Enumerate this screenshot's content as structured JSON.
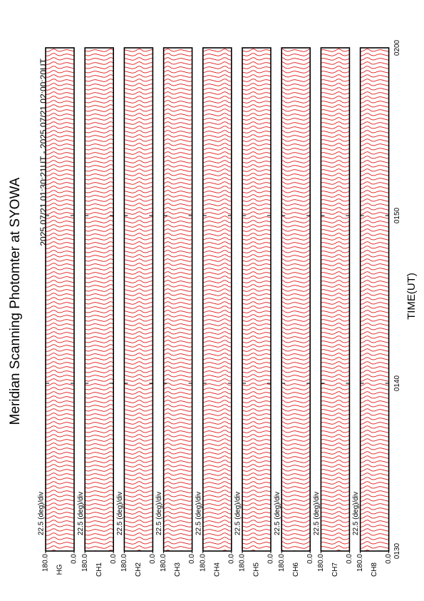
{
  "chart_data": {
    "type": "panels",
    "title": "Meridian Scanning Photomter at SYOWA",
    "subtitle": "2025 07/21 01:30:21UT - 2025 07/21 02:00:20UT",
    "x_label": "TIME(UT)",
    "xlim": [
      90,
      120
    ],
    "xticks": [
      {
        "value": 90,
        "label": "0130"
      },
      {
        "value": 100,
        "label": "0140"
      },
      {
        "value": 110,
        "label": "0150"
      },
      {
        "value": 120,
        "label": "0200"
      }
    ],
    "ylim": [
      0,
      180
    ],
    "yticks": [
      {
        "value": 0,
        "label": "0.0"
      },
      {
        "value": 180,
        "label": "180.0"
      }
    ],
    "scale_label": "22.5 (deg)/div",
    "color": "#e00000",
    "panels": [
      "HG",
      "CH1",
      "CH2",
      "CH3",
      "CH4",
      "CH5",
      "CH6",
      "CH7",
      "CH8"
    ]
  }
}
